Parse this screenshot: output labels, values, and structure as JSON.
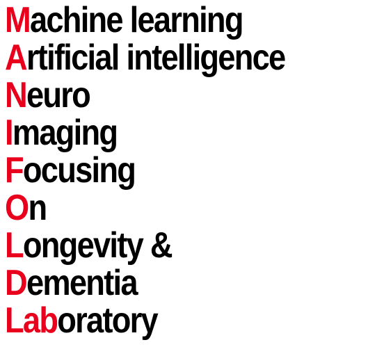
{
  "lines": [
    {
      "initial": "M",
      "rest": "achine learning"
    },
    {
      "initial": "A",
      "rest": "rtificial intelligence"
    },
    {
      "initial": "N",
      "rest": "euro"
    },
    {
      "initial": "I",
      "rest": "maging"
    },
    {
      "initial": "F",
      "rest": "ocusing"
    },
    {
      "initial": "O",
      "rest": "n"
    },
    {
      "initial": "L",
      "rest": "ongevity &"
    },
    {
      "initial": "D",
      "rest": "ementia"
    },
    {
      "initial": "Lab",
      "rest": "oratory"
    }
  ],
  "colors": {
    "initial": "#e8001c",
    "text": "#000000",
    "background": "#ffffff"
  }
}
